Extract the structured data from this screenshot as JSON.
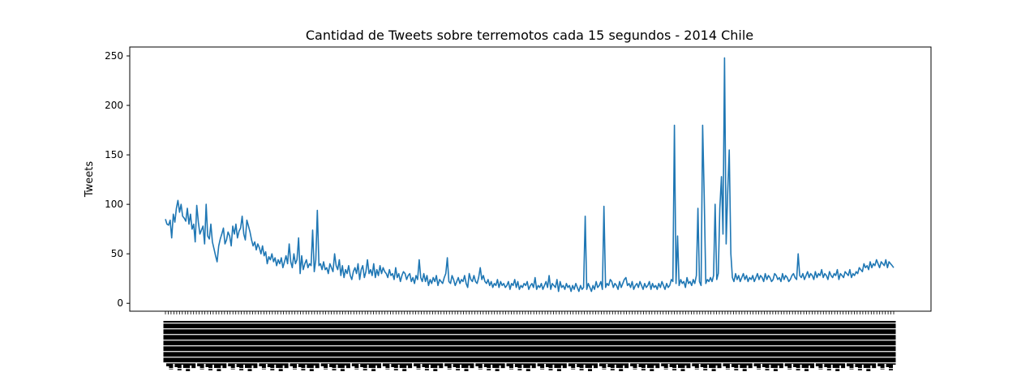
{
  "chart_data": {
    "type": "line",
    "title": "Cantidad de Tweets sobre terremotos cada 15 segundos - 2014 Chile",
    "xlabel": "",
    "ylabel": "Tweets",
    "ylim": [
      -8,
      259
    ],
    "yticks": [
      "0",
      "50",
      "100",
      "150",
      "200",
      "250"
    ],
    "grid": false,
    "legend": "none",
    "color": "#1f77b4",
    "x_tick_labels_legible": false,
    "series": [
      {
        "values": [
          85,
          80,
          79,
          84,
          66,
          90,
          82,
          96,
          104,
          92,
          100,
          88,
          86,
          83,
          96,
          80,
          90,
          75,
          80,
          62,
          99,
          82,
          70,
          74,
          78,
          60,
          100,
          68,
          65,
          80,
          62,
          55,
          48,
          42,
          58,
          65,
          70,
          76,
          60,
          64,
          72,
          68,
          58,
          78,
          70,
          80,
          66,
          73,
          76,
          88,
          70,
          64,
          84,
          78,
          72,
          64,
          58,
          62,
          54,
          60,
          56,
          50,
          58,
          48,
          52,
          40,
          47,
          44,
          50,
          42,
          46,
          38,
          44,
          40,
          46,
          36,
          42,
          48,
          40,
          60,
          42,
          36,
          50,
          40,
          44,
          66,
          30,
          48,
          34,
          40,
          44,
          36,
          40,
          38,
          74,
          32,
          44,
          94,
          38,
          40,
          34,
          42,
          34,
          36,
          30,
          40,
          36,
          32,
          50,
          38,
          34,
          44,
          28,
          38,
          26,
          34,
          30,
          38,
          28,
          24,
          32,
          36,
          30,
          40,
          24,
          34,
          38,
          26,
          32,
          44,
          30,
          34,
          28,
          40,
          26,
          34,
          28,
          38,
          30,
          36,
          32,
          30,
          26,
          34,
          28,
          30,
          24,
          36,
          26,
          30,
          22,
          28,
          32,
          30,
          24,
          28,
          30,
          22,
          26,
          20,
          28,
          24,
          44,
          26,
          22,
          30,
          22,
          28,
          18,
          24,
          20,
          26,
          22,
          28,
          18,
          24,
          22,
          20,
          26,
          30,
          46,
          22,
          20,
          28,
          24,
          18,
          22,
          26,
          20,
          24,
          22,
          28,
          20,
          16,
          30,
          24,
          22,
          28,
          22,
          20,
          26,
          36,
          24,
          28,
          22,
          20,
          24,
          18,
          22,
          16,
          20,
          18,
          24,
          16,
          22,
          18,
          20,
          16,
          18,
          22,
          14,
          20,
          18,
          24,
          16,
          22,
          14,
          18,
          16,
          20,
          18,
          22,
          14,
          18,
          20,
          16,
          26,
          14,
          18,
          16,
          20,
          14,
          18,
          22,
          16,
          28,
          14,
          20,
          18,
          16,
          24,
          12,
          22,
          16,
          18,
          14,
          20,
          16,
          18,
          12,
          18,
          14,
          20,
          16,
          12,
          18,
          14,
          16,
          88,
          14,
          20,
          16,
          12,
          18,
          14,
          22,
          16,
          18,
          22,
          14,
          98,
          16,
          20,
          18,
          24,
          22,
          16,
          20,
          18,
          14,
          22,
          16,
          20,
          24,
          26,
          18,
          20,
          16,
          22,
          14,
          18,
          20,
          16,
          22,
          18,
          14,
          20,
          16,
          18,
          22,
          14,
          20,
          16,
          18,
          14,
          20,
          16,
          22,
          18,
          14,
          20,
          16,
          18,
          24,
          22,
          180,
          20,
          68,
          18,
          24,
          20,
          22,
          16,
          26,
          20,
          22,
          18,
          24,
          20,
          28,
          96,
          22,
          18,
          180,
          110,
          20,
          24,
          22,
          26,
          22,
          28,
          100,
          24,
          30,
          96,
          128,
          70,
          248,
          60,
          112,
          155,
          50,
          26,
          22,
          30,
          24,
          28,
          22,
          26,
          30,
          24,
          28,
          22,
          26,
          24,
          28,
          22,
          26,
          30,
          24,
          28,
          26,
          22,
          30,
          24,
          28,
          26,
          22,
          24,
          30,
          28,
          24,
          26,
          22,
          30,
          24,
          28,
          26,
          22,
          24,
          28,
          30,
          26,
          24,
          50,
          28,
          26,
          30,
          24,
          28,
          32,
          26,
          30,
          28,
          24,
          32,
          26,
          30,
          28,
          34,
          26,
          30,
          28,
          24,
          32,
          28,
          26,
          30,
          28,
          34,
          24,
          30,
          28,
          26,
          32,
          30,
          28,
          34,
          26,
          30,
          28,
          32,
          30,
          36,
          34,
          32,
          40,
          36,
          38,
          34,
          42,
          36,
          40,
          38,
          44,
          40,
          36,
          42,
          40,
          38,
          44,
          36,
          42,
          40,
          38,
          36
        ]
      }
    ],
    "x_tick_count": 260
  }
}
